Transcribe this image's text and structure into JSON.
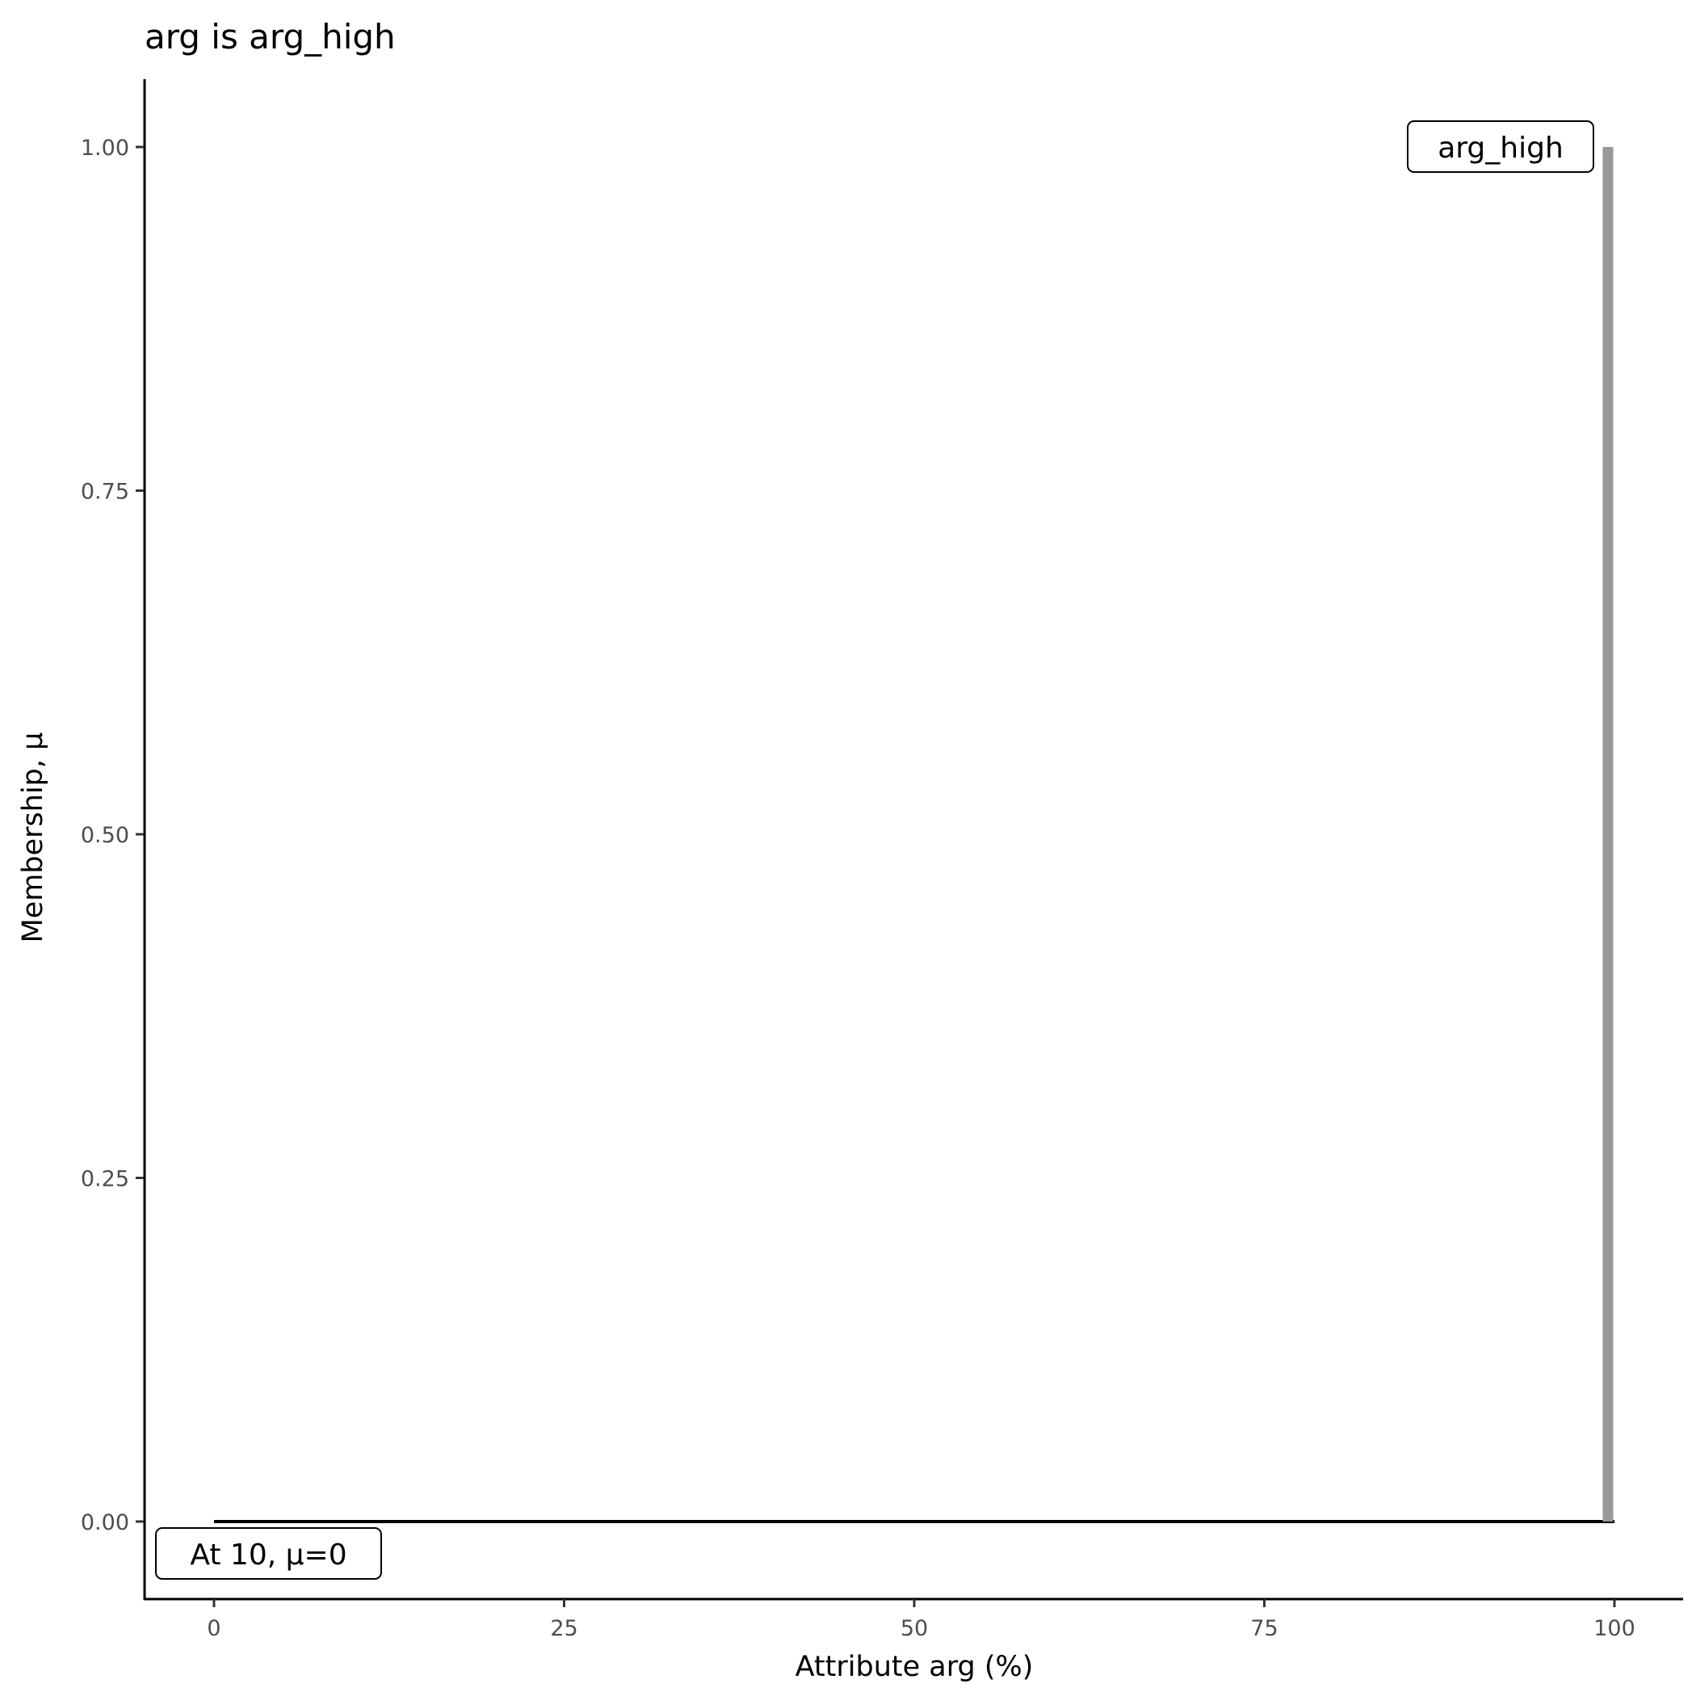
{
  "chart_data": {
    "type": "line",
    "title": "arg is arg_high",
    "xlabel": "Attribute arg (%)",
    "ylabel": "Membership, μ",
    "xlim": [
      -5,
      105
    ],
    "ylim": [
      -0.05,
      1.05
    ],
    "xticks": [
      0,
      25,
      50,
      75,
      100
    ],
    "xtick_labels": [
      "0",
      "25",
      "50",
      "75",
      "100"
    ],
    "yticks": [
      0,
      0.25,
      0.5,
      0.75,
      1
    ],
    "ytick_labels": [
      "0.00",
      "0.25",
      "0.50",
      "0.75",
      "1.00"
    ],
    "grid": false,
    "series": [
      {
        "color": "#000000",
        "x": [
          0,
          100
        ],
        "y": [
          0,
          0
        ]
      },
      {
        "color": "#999999",
        "x": [
          100,
          100
        ],
        "y": [
          0,
          1
        ]
      }
    ],
    "annotations": [
      {
        "text": "arg_high",
        "x": 100,
        "y": 1
      },
      {
        "text": "At 10, μ=0",
        "x": 0,
        "y": 0
      }
    ]
  }
}
